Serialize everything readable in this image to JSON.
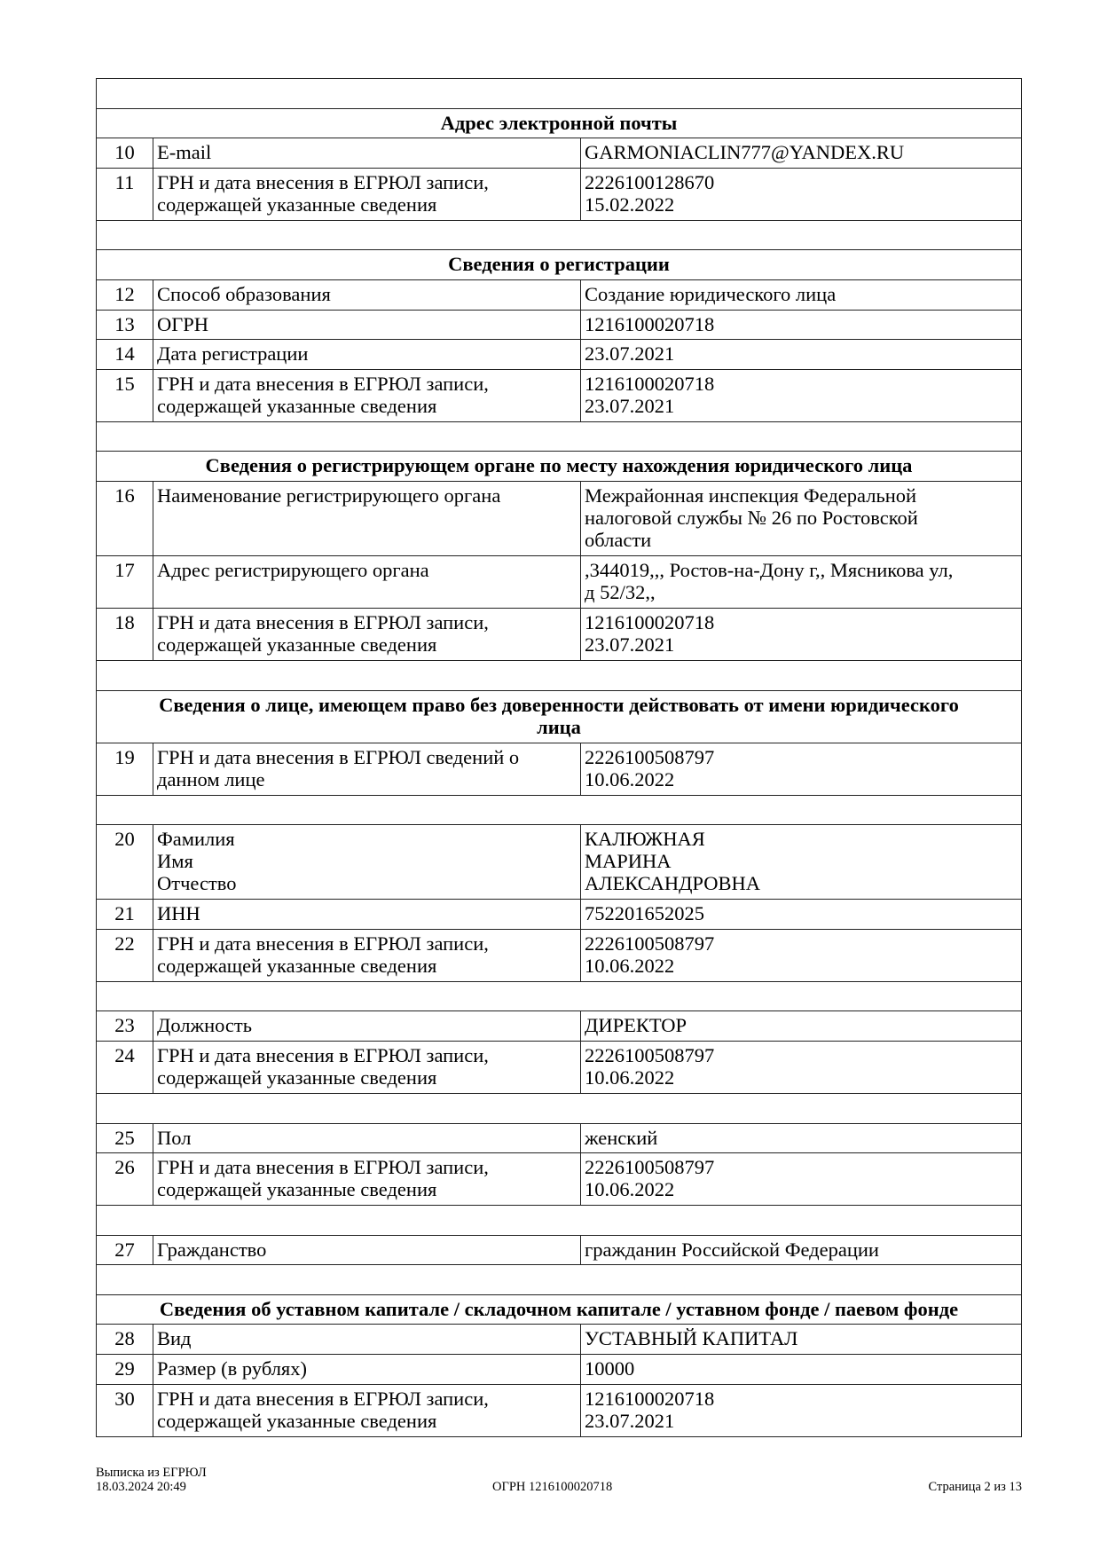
{
  "rows": [
    {
      "type": "empty"
    },
    {
      "type": "section",
      "title": "Адрес электронной почты"
    },
    {
      "type": "data",
      "num": "10",
      "label": "E-mail",
      "value": "GARMONIACLIN777@YANDEX.RU"
    },
    {
      "type": "data",
      "num": "11",
      "label": "ГРН и дата внесения в ЕГРЮЛ записи,\nсодержащей указанные сведения",
      "value": "2226100128670\n15.02.2022"
    },
    {
      "type": "empty"
    },
    {
      "type": "section",
      "title": "Сведения о регистрации"
    },
    {
      "type": "data",
      "num": "12",
      "label": "Способ образования",
      "value": "Создание юридического лица"
    },
    {
      "type": "data",
      "num": "13",
      "label": "ОГРН",
      "value": "1216100020718"
    },
    {
      "type": "data",
      "num": "14",
      "label": "Дата регистрации",
      "value": "23.07.2021"
    },
    {
      "type": "data",
      "num": "15",
      "label": "ГРН и дата внесения в ЕГРЮЛ записи,\nсодержащей указанные сведения",
      "value": "1216100020718\n23.07.2021"
    },
    {
      "type": "empty"
    },
    {
      "type": "section",
      "title": "Сведения о регистрирующем органе по месту нахождения юридического лица"
    },
    {
      "type": "data",
      "num": "16",
      "label": "Наименование регистрирующего органа",
      "value": "Межрайонная инспекция Федеральной\nналоговой службы № 26 по Ростовской\nобласти",
      "h": 3
    },
    {
      "type": "data",
      "num": "17",
      "label": "Адрес регистрирующего органа",
      "value": ",344019,,, Ростов-на-Дону г,, Мясникова ул,\nд 52/32,,",
      "h": 2
    },
    {
      "type": "data",
      "num": "18",
      "label": "ГРН и дата внесения в ЕГРЮЛ записи,\nсодержащей указанные сведения",
      "value": "1216100020718\n23.07.2021"
    },
    {
      "type": "empty"
    },
    {
      "type": "section",
      "title": "Сведения о лице, имеющем право без доверенности действовать от имени юридического\nлица",
      "h": 2
    },
    {
      "type": "data",
      "num": "19",
      "label": "ГРН и дата внесения в ЕГРЮЛ сведений о\nданном лице",
      "value": "2226100508797\n10.06.2022"
    },
    {
      "type": "empty"
    },
    {
      "type": "data",
      "num": "20",
      "label": "Фамилия\nИмя\nОтчество",
      "value": "КАЛЮЖНАЯ\nМАРИНА\nАЛЕКСАНДРОВНА",
      "h": 3
    },
    {
      "type": "data",
      "num": "21",
      "label": "ИНН",
      "value": "752201652025"
    },
    {
      "type": "data",
      "num": "22",
      "label": "ГРН и дата внесения в ЕГРЮЛ записи,\nсодержащей указанные сведения",
      "value": "2226100508797\n10.06.2022"
    },
    {
      "type": "empty"
    },
    {
      "type": "data",
      "num": "23",
      "label": "Должность",
      "value": "ДИРЕКТОР"
    },
    {
      "type": "data",
      "num": "24",
      "label": "ГРН и дата внесения в ЕГРЮЛ записи,\nсодержащей указанные сведения",
      "value": "2226100508797\n10.06.2022"
    },
    {
      "type": "empty"
    },
    {
      "type": "data",
      "num": "25",
      "label": "Пол",
      "value": "женский"
    },
    {
      "type": "data",
      "num": "26",
      "label": "ГРН и дата внесения в ЕГРЮЛ записи,\nсодержащей указанные сведения",
      "value": "2226100508797\n10.06.2022"
    },
    {
      "type": "empty"
    },
    {
      "type": "data",
      "num": "27",
      "label": "Гражданство",
      "value": "гражданин Российской Федерации"
    },
    {
      "type": "empty"
    },
    {
      "type": "section",
      "title": "Сведения об уставном капитале / складочном капитале / уставном фонде / паевом фонде"
    },
    {
      "type": "data",
      "num": "28",
      "label": "Вид",
      "value": "УСТАВНЫЙ КАПИТАЛ"
    },
    {
      "type": "data",
      "num": "29",
      "label": "Размер (в рублях)",
      "value": "10000"
    },
    {
      "type": "data",
      "num": "30",
      "label": "ГРН и дата внесения в ЕГРЮЛ записи,\nсодержащей указанные сведения",
      "value": "1216100020718\n23.07.2021"
    }
  ],
  "footer": {
    "doc_title": "Выписка из ЕГРЮЛ",
    "datetime": "18.03.2024 20:49",
    "ogrn": "ОГРН 1216100020718",
    "page": "Страница 2 из 13"
  }
}
